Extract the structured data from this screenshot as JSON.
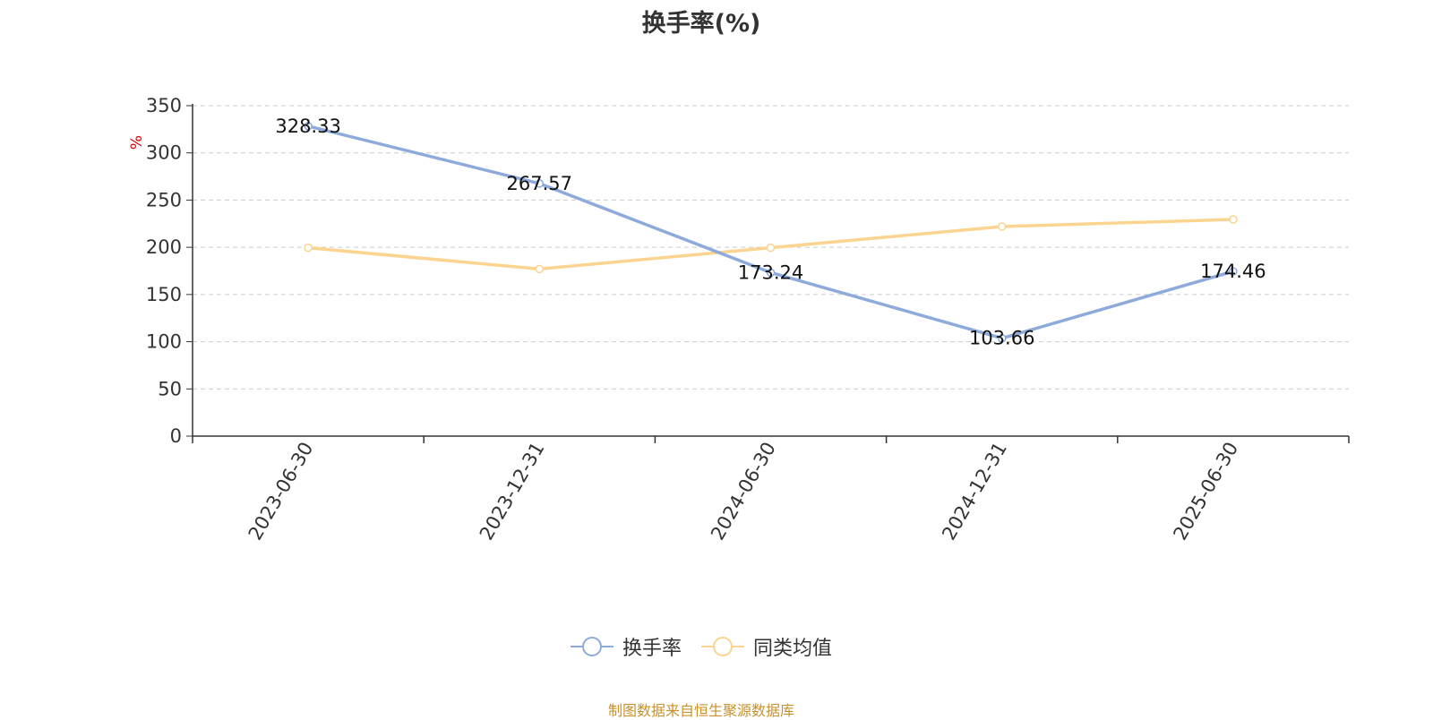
{
  "chart_data": {
    "type": "line",
    "title": "换手率(%)",
    "ylabel": "%",
    "xlabel": "",
    "categories": [
      "2023-06-30",
      "2023-12-31",
      "2024-06-30",
      "2024-12-31",
      "2025-06-30"
    ],
    "ylim": [
      0,
      350
    ],
    "yticks": [
      0,
      50,
      100,
      150,
      200,
      250,
      300,
      350
    ],
    "grid": true,
    "legend_position": "bottom",
    "series": [
      {
        "name": "换手率",
        "color": "#8eaadb",
        "values": [
          328.33,
          267.57,
          173.24,
          103.66,
          174.46
        ],
        "labels": [
          "328.33",
          "267.57",
          "173.24",
          "103.66",
          "174.46"
        ]
      },
      {
        "name": "同类均值",
        "color": "#fbd48f",
        "values": [
          199.5,
          177.0,
          199.5,
          222.0,
          229.5
        ]
      }
    ]
  },
  "footer": {
    "source": "制图数据来自恒生聚源数据库"
  },
  "colors": {
    "axis": "#333333",
    "grid": "#cccccc",
    "ylabel": "#e00000",
    "footer": "#c8922a"
  }
}
